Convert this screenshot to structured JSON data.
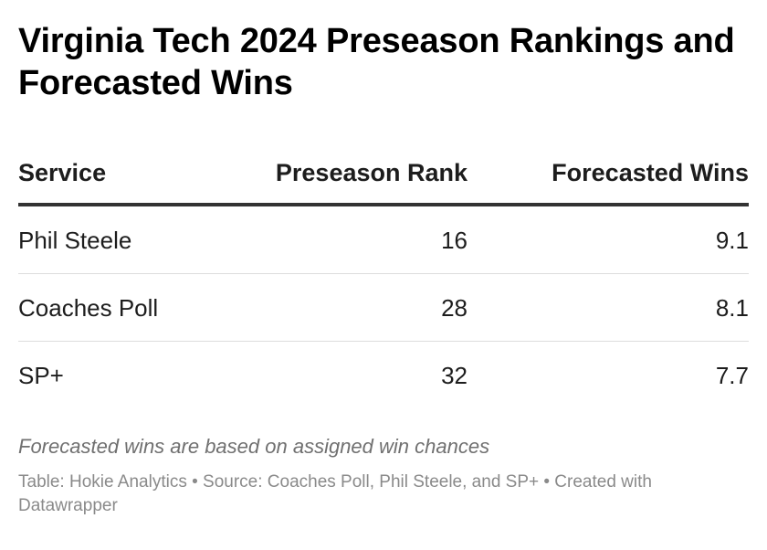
{
  "chart_data": {
    "type": "table",
    "title": "Virginia Tech 2024 Preseason Rankings and Forecasted Wins",
    "columns": [
      "Service",
      "Preseason Rank",
      "Forecasted Wins"
    ],
    "rows": [
      {
        "service": "Phil Steele",
        "rank": "16",
        "wins": "9.1"
      },
      {
        "service": "Coaches Poll",
        "rank": "28",
        "wins": "8.1"
      },
      {
        "service": "SP+",
        "rank": "32",
        "wins": "7.7"
      }
    ],
    "notes": "Forecasted wins are based on assigned win chances",
    "credit": "Table: Hokie Analytics • Source: Coaches Poll, Phil Steele, and SP+ • Created with Datawrapper"
  }
}
